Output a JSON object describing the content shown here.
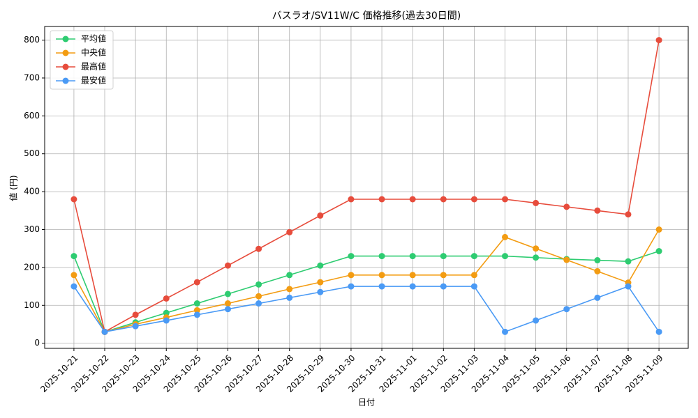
{
  "chart_data": {
    "type": "line",
    "title": "バスラオ/SV11W/C 価格推移(過去30日間)",
    "x_label": "日付",
    "y_label": "値 (円)",
    "categories": [
      "2025-10-21",
      "2025-10-22",
      "2025-10-23",
      "2025-10-24",
      "2025-10-25",
      "2025-10-26",
      "2025-10-27",
      "2025-10-28",
      "2025-10-29",
      "2025-10-30",
      "2025-10-31",
      "2025-11-01",
      "2025-11-02",
      "2025-11-03",
      "2025-11-04",
      "2025-11-05",
      "2025-11-06",
      "2025-11-07",
      "2025-11-08",
      "2025-11-09"
    ],
    "series": [
      {
        "name": "平均値",
        "color": "#2ecc71",
        "values": [
          230,
          30,
          55,
          80,
          105,
          130,
          155,
          180,
          205,
          230,
          230,
          230,
          230,
          230,
          230,
          226,
          222,
          219,
          216,
          243
        ]
      },
      {
        "name": "中央値",
        "color": "#f39c12",
        "values": [
          180,
          30,
          50,
          68,
          87,
          105,
          124,
          143,
          161,
          180,
          180,
          180,
          180,
          180,
          280,
          250,
          220,
          190,
          160,
          300
        ]
      },
      {
        "name": "最高値",
        "color": "#e74c3c",
        "values": [
          380,
          30,
          75,
          118,
          161,
          205,
          249,
          293,
          337,
          380,
          380,
          380,
          380,
          380,
          380,
          370,
          360,
          350,
          340,
          800
        ]
      },
      {
        "name": "最安値",
        "color": "#4a9af5",
        "values": [
          150,
          30,
          45,
          60,
          75,
          90,
          105,
          120,
          135,
          150,
          150,
          150,
          150,
          150,
          30,
          60,
          90,
          120,
          150,
          30
        ]
      }
    ],
    "ylim": [
      -13.5,
      836
    ],
    "yticks": [
      0,
      100,
      200,
      300,
      400,
      500,
      600,
      700,
      800
    ],
    "grid": true,
    "legend": "upper-left"
  }
}
